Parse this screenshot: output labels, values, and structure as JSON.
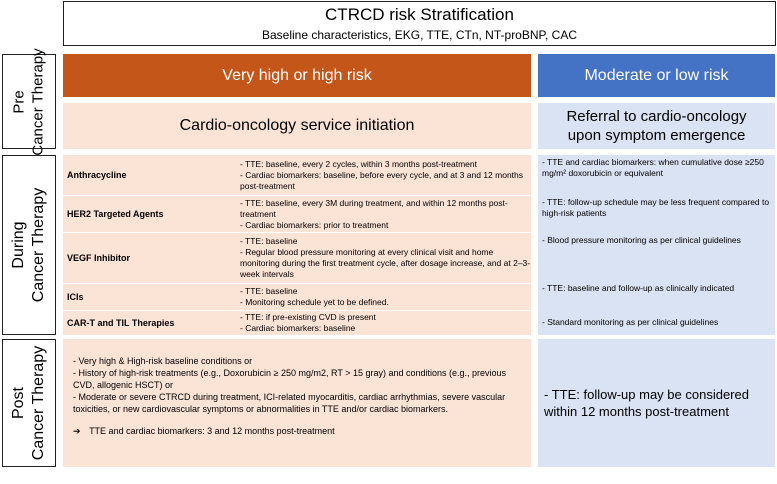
{
  "header": {
    "title": "CTRCD risk Stratification",
    "subtitle": "Baseline characteristics, EKG, TTE, CTn, NT-proBNP, CAC"
  },
  "phases": {
    "pre": [
      "Pre",
      "Cancer Therapy"
    ],
    "during": [
      "During",
      "Cancer Therapy"
    ],
    "post": [
      "Post",
      "Cancer Therapy"
    ]
  },
  "risk_headers": {
    "high": "Very high or high risk",
    "moderate": "Moderate or low risk"
  },
  "pre": {
    "high": "Cardio-oncology service initiation",
    "moderate": [
      "Referral to cardio-oncology",
      "upon symptom emergence"
    ]
  },
  "during": {
    "agents": [
      {
        "name": "Anthracycline",
        "lines": [
          "- TTE: baseline, every 2 cycles, within 3 months post-treatment",
          "- Cardiac biomarkers:  baseline, before every cycle, and at 3 and 12 months post-treatment"
        ]
      },
      {
        "name": "HER2 Targeted Agents",
        "lines": [
          "- TTE: baseline, every 3M during treatment, and within 12 months post-treatment",
          "- Cardiac biomarkers: prior to treatment"
        ]
      },
      {
        "name": "VEGF Inhibitor",
        "lines": [
          "- TTE: baseline",
          "- Regular blood pressure monitoring at every clinical visit and home monitoring during the first treatment cycle, after dosage increase, and at 2–3-week intervals"
        ]
      },
      {
        "name": "ICIs",
        "lines": [
          "- TTE: baseline",
          "- Monitoring schedule yet to be defined."
        ]
      },
      {
        "name": "CAR-T and TIL Therapies",
        "lines": [
          "- TTE: if pre-existing CVD is present",
          "- Cardiac biomarkers: baseline"
        ]
      }
    ],
    "moderate": [
      "- TTE and cardiac biomarkers: when cumulative dose ≥250 mg/m² doxorubicin or equivalent",
      "- TTE: follow-up schedule may be less frequent compared to high-risk patients",
      "- Blood pressure monitoring as per clinical guidelines",
      "- TTE: baseline and follow-up as clinically indicated",
      "- Standard monitoring as per clinical guidelines"
    ]
  },
  "post": {
    "high": [
      "- Very high & High-risk baseline conditions or",
      "- History of high-risk treatments (e.g., Doxorubicin ≥ 250 mg/m2, RT > 15 gray) and conditions (e.g., previous CVD, allogenic HSCT) or",
      "- Moderate or severe CTRCD during treatment, ICI-related myocarditis, cardiac arrhythmias, severe vascular toxicities, or new cardiovascular symptoms or abnormalities in TTE and/or cardiac biomarkers."
    ],
    "high_arrow_symbol": "➔",
    "high_arrow_text": "TTE and cardiac biomarkers: 3 and 12 months post-treatment",
    "moderate": "- TTE: follow-up may be considered within 12 months post-treatment"
  }
}
